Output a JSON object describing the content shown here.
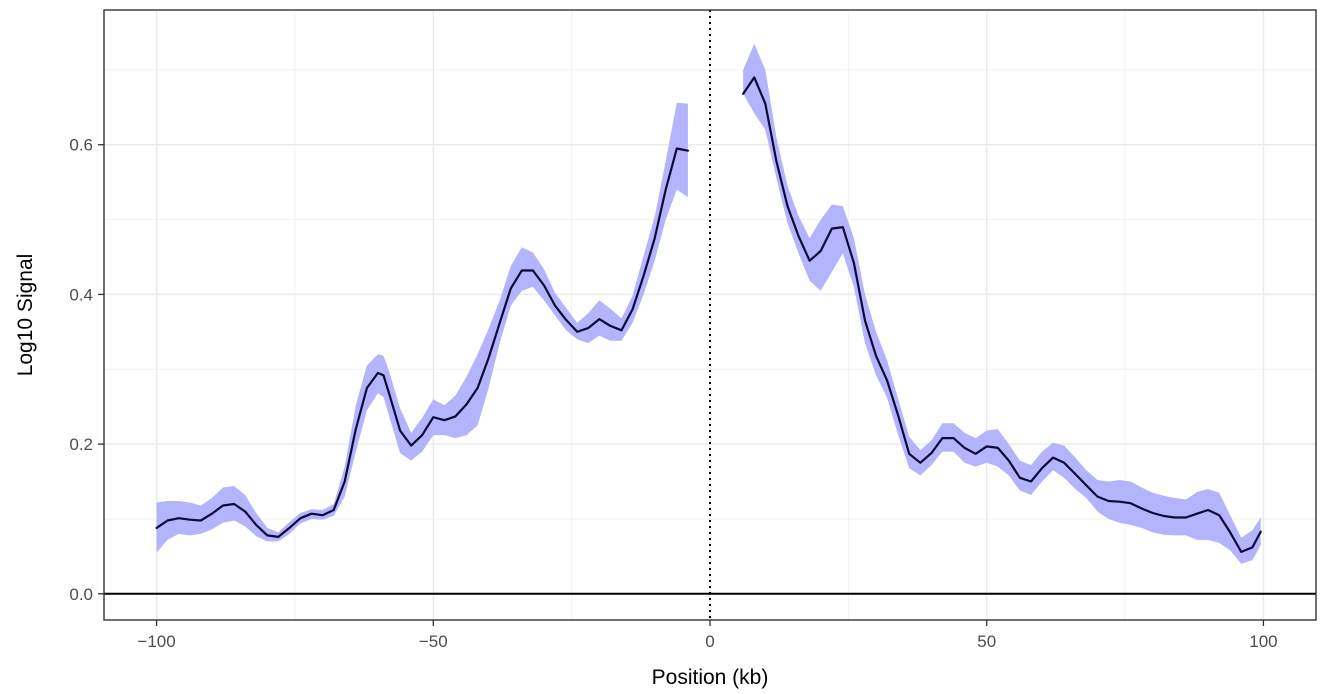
{
  "chart_data": {
    "type": "line",
    "title": "",
    "xlabel": "Position (kb)",
    "ylabel": "Log10 Signal",
    "xlim": [
      -109.5,
      109.5
    ],
    "ylim": [
      -0.035,
      0.78
    ],
    "x_ticks": [
      -100,
      -50,
      0,
      50,
      100
    ],
    "x_tick_labels": [
      "−100",
      "−50",
      "0",
      "50",
      "100"
    ],
    "y_ticks": [
      0.0,
      0.2,
      0.4,
      0.6
    ],
    "y_tick_labels": [
      "0.0",
      "0.2",
      "0.4",
      "0.6"
    ],
    "grid": true,
    "legend": "none",
    "colors": {
      "line": "#0d0a3a",
      "ribbon": "#b4b4fc",
      "reference": "#000000"
    },
    "reference_lines": {
      "hline_y": 0,
      "vline_x": 0,
      "vline_style": "dotted"
    },
    "series": [
      {
        "segment": "upstream",
        "x": [
          -100,
          -98,
          -96,
          -94,
          -92,
          -90,
          -88,
          -86,
          -84,
          -82,
          -80,
          -78,
          -76,
          -74,
          -72,
          -70,
          -68,
          -66,
          -64,
          -62,
          -60,
          -59,
          -58,
          -56,
          -54,
          -52,
          -50,
          -48,
          -46,
          -44,
          -42,
          -40,
          -38,
          -36,
          -34,
          -32,
          -30,
          -28,
          -26,
          -24,
          -22,
          -20,
          -18,
          -16,
          -14,
          -12,
          -10,
          -8,
          -6,
          -4
        ],
        "y": [
          0.088,
          0.098,
          0.101,
          0.099,
          0.098,
          0.107,
          0.118,
          0.12,
          0.11,
          0.092,
          0.078,
          0.076,
          0.088,
          0.101,
          0.107,
          0.105,
          0.112,
          0.15,
          0.22,
          0.275,
          0.295,
          0.292,
          0.268,
          0.218,
          0.198,
          0.212,
          0.236,
          0.232,
          0.237,
          0.253,
          0.275,
          0.315,
          0.362,
          0.408,
          0.432,
          0.432,
          0.412,
          0.385,
          0.366,
          0.35,
          0.355,
          0.367,
          0.358,
          0.352,
          0.38,
          0.425,
          0.475,
          0.54,
          0.595,
          0.592
        ],
        "lower": [
          0.055,
          0.072,
          0.08,
          0.078,
          0.08,
          0.086,
          0.095,
          0.098,
          0.09,
          0.077,
          0.07,
          0.07,
          0.08,
          0.094,
          0.1,
          0.099,
          0.104,
          0.13,
          0.19,
          0.245,
          0.268,
          0.263,
          0.238,
          0.188,
          0.178,
          0.19,
          0.212,
          0.212,
          0.208,
          0.212,
          0.225,
          0.275,
          0.335,
          0.385,
          0.405,
          0.41,
          0.392,
          0.372,
          0.352,
          0.34,
          0.335,
          0.345,
          0.338,
          0.338,
          0.362,
          0.4,
          0.445,
          0.5,
          0.54,
          0.53
        ],
        "upper": [
          0.122,
          0.124,
          0.124,
          0.122,
          0.118,
          0.128,
          0.142,
          0.144,
          0.132,
          0.108,
          0.088,
          0.082,
          0.096,
          0.108,
          0.113,
          0.112,
          0.12,
          0.17,
          0.252,
          0.305,
          0.32,
          0.318,
          0.298,
          0.248,
          0.215,
          0.235,
          0.26,
          0.252,
          0.265,
          0.29,
          0.32,
          0.354,
          0.392,
          0.438,
          0.463,
          0.456,
          0.434,
          0.402,
          0.382,
          0.362,
          0.375,
          0.392,
          0.381,
          0.368,
          0.398,
          0.452,
          0.504,
          0.578,
          0.656,
          0.655
        ]
      },
      {
        "segment": "downstream",
        "x": [
          6,
          8,
          10,
          12,
          14,
          16,
          18,
          20,
          22,
          24,
          26,
          28,
          30,
          32,
          34,
          36,
          38,
          40,
          42,
          44,
          46,
          48,
          50,
          52,
          54,
          56,
          58,
          60,
          62,
          64,
          66,
          68,
          70,
          72,
          74,
          76,
          78,
          80,
          82,
          84,
          86,
          88,
          90,
          92,
          94,
          96,
          98,
          99.5
        ],
        "y": [
          0.668,
          0.69,
          0.655,
          0.578,
          0.518,
          0.478,
          0.445,
          0.458,
          0.488,
          0.49,
          0.442,
          0.365,
          0.318,
          0.285,
          0.238,
          0.187,
          0.175,
          0.188,
          0.208,
          0.208,
          0.195,
          0.187,
          0.197,
          0.195,
          0.178,
          0.155,
          0.15,
          0.168,
          0.182,
          0.175,
          0.16,
          0.145,
          0.13,
          0.124,
          0.123,
          0.121,
          0.114,
          0.108,
          0.104,
          0.102,
          0.102,
          0.107,
          0.112,
          0.105,
          0.082,
          0.056,
          0.062,
          0.083
        ],
        "lower": [
          0.668,
          0.642,
          0.62,
          0.555,
          0.495,
          0.455,
          0.418,
          0.405,
          0.43,
          0.455,
          0.41,
          0.335,
          0.292,
          0.262,
          0.212,
          0.168,
          0.158,
          0.172,
          0.19,
          0.19,
          0.175,
          0.17,
          0.175,
          0.17,
          0.158,
          0.138,
          0.132,
          0.15,
          0.165,
          0.155,
          0.14,
          0.128,
          0.11,
          0.1,
          0.095,
          0.092,
          0.088,
          0.082,
          0.079,
          0.078,
          0.078,
          0.072,
          0.072,
          0.068,
          0.058,
          0.04,
          0.045,
          0.065
        ],
        "upper": [
          0.7,
          0.735,
          0.7,
          0.61,
          0.545,
          0.505,
          0.475,
          0.5,
          0.52,
          0.518,
          0.475,
          0.4,
          0.35,
          0.312,
          0.26,
          0.21,
          0.192,
          0.205,
          0.228,
          0.228,
          0.215,
          0.208,
          0.218,
          0.22,
          0.2,
          0.178,
          0.172,
          0.19,
          0.202,
          0.198,
          0.182,
          0.165,
          0.152,
          0.15,
          0.152,
          0.15,
          0.142,
          0.135,
          0.131,
          0.128,
          0.126,
          0.136,
          0.14,
          0.135,
          0.105,
          0.075,
          0.085,
          0.102
        ]
      }
    ]
  }
}
